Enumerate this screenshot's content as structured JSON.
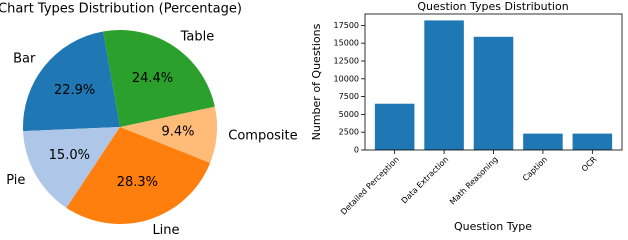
{
  "chart_data": [
    {
      "type": "pie",
      "title": "Chart Types Distribution (Percentage)",
      "categories": [
        "Bar",
        "Pie",
        "Line",
        "Composite",
        "Table"
      ],
      "values": [
        22.9,
        15.0,
        28.3,
        9.4,
        24.4
      ],
      "value_labels": [
        "22.9%",
        "15.0%",
        "28.3%",
        "9.4%",
        "24.4%"
      ],
      "colors": [
        "#1f77b4",
        "#aec7e8",
        "#ff7f0e",
        "#ffbb78",
        "#2ca02c"
      ],
      "start_angle": 100
    },
    {
      "type": "bar",
      "title": "Question Types Distribution",
      "x_label": "Question Type",
      "y_label": "Number of Questions",
      "categories": [
        "Detailed Perception",
        "Data Extraction",
        "Math Reasoning",
        "Caption",
        "OCR"
      ],
      "values": [
        6500,
        18200,
        15900,
        2300,
        2300
      ],
      "color": "#1f77b4",
      "ylim": [
        0,
        19100
      ],
      "yticks": [
        0,
        2500,
        5000,
        7500,
        10000,
        12500,
        15000,
        17500
      ]
    }
  ]
}
